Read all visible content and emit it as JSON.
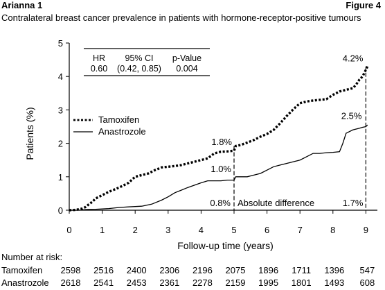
{
  "header": {
    "study": "Arianna 1",
    "figure": "Figure 4",
    "subtitle": "Contralateral breast cancer prevalence in patients with hormone-receptor-positive tumours"
  },
  "chart_data": {
    "type": "line",
    "xlabel": "Follow-up time (years)",
    "ylabel": "Patients (%)",
    "xlim": [
      0,
      9.4
    ],
    "ylim": [
      0,
      5
    ],
    "xticks": [
      0,
      1,
      2,
      3,
      4,
      5,
      6,
      7,
      8,
      9
    ],
    "yticks": [
      0,
      1,
      2,
      3,
      4,
      5
    ],
    "grid": false,
    "legend": {
      "placement": "middle-left",
      "entries": [
        {
          "label": "Tamoxifen",
          "style": "dotted"
        },
        {
          "label": "Anastrozole",
          "style": "solid"
        }
      ]
    },
    "stats_box": {
      "headers": [
        "HR",
        "95% CI",
        "p-Value"
      ],
      "values": [
        "0.60",
        "(0.42, 0.85)",
        "0.004"
      ]
    },
    "series": [
      {
        "name": "Tamoxifen",
        "style": "dotted",
        "points": [
          [
            0,
            0
          ],
          [
            0.2,
            0.01
          ],
          [
            0.4,
            0.05
          ],
          [
            0.5,
            0.1
          ],
          [
            0.6,
            0.18
          ],
          [
            0.7,
            0.25
          ],
          [
            0.8,
            0.35
          ],
          [
            1.0,
            0.45
          ],
          [
            1.2,
            0.55
          ],
          [
            1.4,
            0.63
          ],
          [
            1.6,
            0.72
          ],
          [
            1.8,
            0.82
          ],
          [
            2.0,
            1.0
          ],
          [
            2.2,
            1.05
          ],
          [
            2.4,
            1.1
          ],
          [
            2.6,
            1.2
          ],
          [
            2.8,
            1.28
          ],
          [
            3.0,
            1.3
          ],
          [
            3.2,
            1.32
          ],
          [
            3.4,
            1.35
          ],
          [
            3.6,
            1.4
          ],
          [
            3.8,
            1.45
          ],
          [
            4.0,
            1.5
          ],
          [
            4.2,
            1.55
          ],
          [
            4.4,
            1.7
          ],
          [
            4.6,
            1.75
          ],
          [
            4.8,
            1.76
          ],
          [
            5.0,
            1.78
          ],
          [
            5.05,
            1.92
          ],
          [
            5.2,
            1.95
          ],
          [
            5.4,
            2.02
          ],
          [
            5.6,
            2.1
          ],
          [
            5.8,
            2.2
          ],
          [
            6.0,
            2.28
          ],
          [
            6.2,
            2.4
          ],
          [
            6.4,
            2.6
          ],
          [
            6.6,
            2.82
          ],
          [
            6.8,
            3.02
          ],
          [
            7.0,
            3.2
          ],
          [
            7.2,
            3.25
          ],
          [
            7.4,
            3.28
          ],
          [
            7.6,
            3.3
          ],
          [
            7.8,
            3.32
          ],
          [
            8.0,
            3.45
          ],
          [
            8.2,
            3.55
          ],
          [
            8.4,
            3.6
          ],
          [
            8.6,
            3.65
          ],
          [
            8.7,
            3.75
          ],
          [
            8.8,
            3.9
          ],
          [
            8.9,
            4.0
          ],
          [
            8.95,
            4.1
          ],
          [
            9.0,
            4.2
          ],
          [
            9.05,
            4.3
          ]
        ]
      },
      {
        "name": "Anastrozole",
        "style": "solid",
        "points": [
          [
            0,
            0
          ],
          [
            0.3,
            0
          ],
          [
            0.5,
            0.02
          ],
          [
            0.8,
            0.03
          ],
          [
            1.2,
            0.05
          ],
          [
            1.5,
            0.08
          ],
          [
            1.8,
            0.1
          ],
          [
            2.2,
            0.12
          ],
          [
            2.5,
            0.18
          ],
          [
            2.8,
            0.3
          ],
          [
            3.0,
            0.4
          ],
          [
            3.2,
            0.52
          ],
          [
            3.4,
            0.6
          ],
          [
            3.6,
            0.68
          ],
          [
            3.8,
            0.75
          ],
          [
            4.0,
            0.82
          ],
          [
            4.2,
            0.88
          ],
          [
            4.4,
            0.88
          ],
          [
            4.6,
            0.88
          ],
          [
            4.8,
            0.9
          ],
          [
            5.0,
            0.9
          ],
          [
            5.05,
            1.0
          ],
          [
            5.4,
            1.0
          ],
          [
            5.6,
            1.05
          ],
          [
            5.8,
            1.1
          ],
          [
            6.0,
            1.2
          ],
          [
            6.2,
            1.3
          ],
          [
            6.4,
            1.35
          ],
          [
            6.6,
            1.4
          ],
          [
            6.8,
            1.45
          ],
          [
            7.0,
            1.5
          ],
          [
            7.2,
            1.6
          ],
          [
            7.4,
            1.7
          ],
          [
            7.6,
            1.7
          ],
          [
            7.8,
            1.72
          ],
          [
            8.0,
            1.73
          ],
          [
            8.2,
            1.75
          ],
          [
            8.3,
            2.0
          ],
          [
            8.4,
            2.3
          ],
          [
            8.6,
            2.4
          ],
          [
            8.8,
            2.45
          ],
          [
            8.9,
            2.48
          ],
          [
            9.0,
            2.5
          ],
          [
            9.05,
            2.55
          ]
        ]
      }
    ],
    "annotations": [
      {
        "text": "1.8%",
        "x": 5.0,
        "y": 1.78,
        "anchor": "left-above"
      },
      {
        "text": "1.0%",
        "x": 5.0,
        "y": 1.0,
        "anchor": "left-above"
      },
      {
        "text": "0.8%",
        "x": 5.0,
        "y": 0.0,
        "anchor": "left-above"
      },
      {
        "text": "Absolute difference",
        "x": 5.0,
        "y": 0.0,
        "anchor": "right-above"
      },
      {
        "text": "4.2%",
        "x": 9.0,
        "y": 4.2,
        "anchor": "left-above"
      },
      {
        "text": "2.5%",
        "x": 9.0,
        "y": 2.5,
        "anchor": "left-above"
      },
      {
        "text": "1.7%",
        "x": 9.0,
        "y": 0.0,
        "anchor": "left-above"
      }
    ],
    "difference_lines": [
      5,
      9
    ]
  },
  "risk_table": {
    "title": "Number at risk:",
    "rows": [
      {
        "label": "Tamoxifen",
        "values": [
          "2598",
          "2516",
          "2400",
          "2306",
          "2196",
          "2075",
          "1896",
          "1711",
          "1396",
          "547"
        ]
      },
      {
        "label": "Anastrozole",
        "values": [
          "2618",
          "2541",
          "2453",
          "2361",
          "2278",
          "2159",
          "1995",
          "1801",
          "1493",
          "608"
        ]
      }
    ]
  }
}
